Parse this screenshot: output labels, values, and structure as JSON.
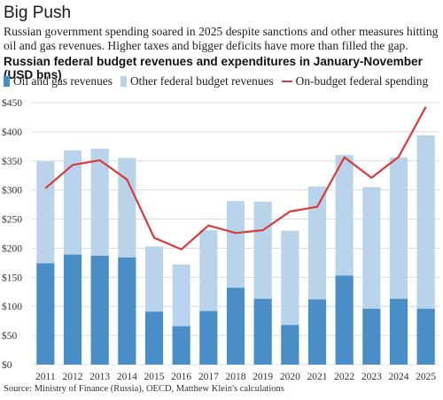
{
  "header": {
    "title": "Big Push",
    "subtitle": "Russian government spending soared in 2025 despite sanctions and other measures hitting oil and gas revenues. Higher taxes and bigger deficits have more than filled the gap."
  },
  "footer": {
    "source": "Source: Ministry of Finance (Russia), OECD, Matthew Klein's calculations"
  },
  "colors": {
    "oil_gas": "#4a8ec8",
    "other": "#b9d4ea",
    "spending": "#d93a3a",
    "grid": "#dcdcdc"
  },
  "chart_data": {
    "type": "bar",
    "stacked": true,
    "title": "Russian federal budget revenues and expenditures in January-November (USD bns)",
    "categories": [
      "2011",
      "2012",
      "2013",
      "2014",
      "2015",
      "2016",
      "2017",
      "2018",
      "2019",
      "2020",
      "2021",
      "2022",
      "2023",
      "2024",
      "2025"
    ],
    "series": [
      {
        "name": "Oil and gas revenues",
        "kind": "bar",
        "values": [
          174,
          189,
          187,
          184,
          91,
          66,
          92,
          132,
          113,
          68,
          112,
          153,
          96,
          113,
          96
        ]
      },
      {
        "name": "Other federal budget revenues",
        "kind": "bar",
        "values": [
          175,
          179,
          184,
          171,
          112,
          106,
          139,
          149,
          167,
          162,
          194,
          207,
          209,
          243,
          298
        ]
      },
      {
        "name": "On-budget federal spending",
        "kind": "line",
        "values": [
          303,
          343,
          351,
          318,
          218,
          198,
          239,
          226,
          231,
          263,
          271,
          356,
          321,
          357,
          443
        ]
      }
    ],
    "yticks": [
      "$0",
      "$50",
      "$100",
      "$150",
      "$200",
      "$250",
      "$300",
      "$350",
      "$400",
      "$450"
    ],
    "ylim": [
      0,
      450
    ],
    "grid": true,
    "legend_position": "top"
  }
}
